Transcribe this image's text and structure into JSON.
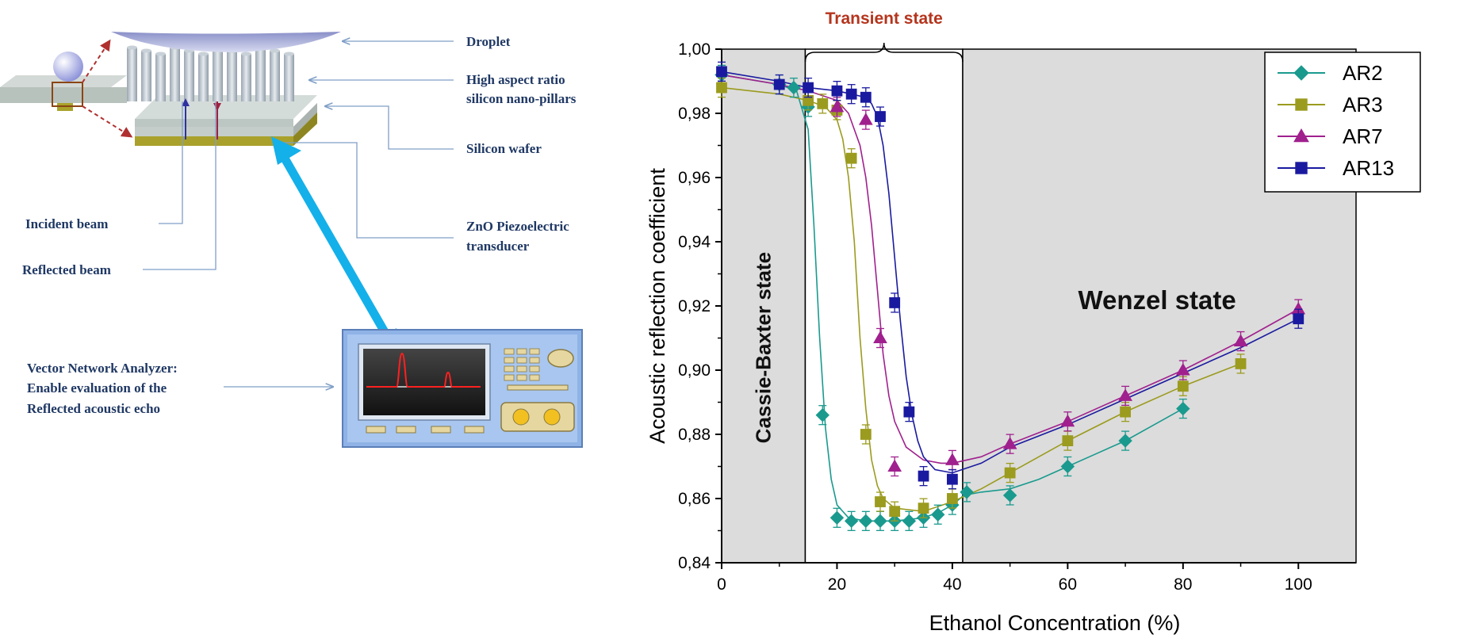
{
  "diagram": {
    "labels": {
      "droplet": "Droplet",
      "pillars_line1": "High aspect ratio",
      "pillars_line2": "silicon nano-pillars",
      "wafer": "Silicon wafer",
      "zno_line1": "ZnO Piezoelectric",
      "zno_line2": "transducer",
      "incident": "Incident beam",
      "reflected": "Reflected beam",
      "vna_line1": "Vector Network Analyzer:",
      "vna_line2": "Enable evaluation of the",
      "vna_line3": "Reflected acoustic echo"
    }
  },
  "chart_data": {
    "type": "scatter",
    "xlabel": "Ethanol Concentration (%)",
    "ylabel": "Acoustic reflection coefficient",
    "xlim": [
      0,
      110
    ],
    "ylim": [
      0.84,
      1.0
    ],
    "xticks": [
      0,
      20,
      40,
      60,
      80,
      100
    ],
    "xtick_labels": [
      "0",
      "20",
      "40",
      "60",
      "80",
      "100"
    ],
    "yticks": [
      0.84,
      0.86,
      0.88,
      0.9,
      0.92,
      0.94,
      0.96,
      0.98,
      1.0
    ],
    "ytick_labels": [
      "0,84",
      "0,86",
      "0,88",
      "0,90",
      "0,92",
      "0,94",
      "0,96",
      "0,98",
      "1,00"
    ],
    "legend_position": "top-right",
    "regions": [
      {
        "name": "Cassie-Baxter state",
        "x_range": [
          0,
          14.5
        ],
        "shaded": true
      },
      {
        "name": "Transient state",
        "x_range": [
          14.5,
          41.8
        ],
        "shaded": false
      },
      {
        "name": "Wenzel state",
        "x_range": [
          41.8,
          110
        ],
        "shaded": true
      }
    ],
    "region_labels": {
      "cassie": "Cassie-Baxter state",
      "transient": "Transient state",
      "wenzel": "Wenzel state"
    },
    "series": [
      {
        "name": "AR2",
        "color": "#1a9a8e",
        "marker": "diamond",
        "x": [
          0,
          10,
          12.5,
          15,
          17.5,
          20,
          22.5,
          25,
          27.5,
          30,
          32.5,
          35,
          37.5,
          40,
          42.5,
          50,
          60,
          70,
          80
        ],
        "y": [
          0.992,
          0.989,
          0.988,
          0.982,
          0.886,
          0.854,
          0.853,
          0.853,
          0.853,
          0.853,
          0.853,
          0.854,
          0.855,
          0.858,
          0.862,
          0.861,
          0.87,
          0.878,
          0.888
        ]
      },
      {
        "name": "AR3",
        "color": "#9b9b1f",
        "marker": "square",
        "x": [
          0,
          15,
          17.5,
          20,
          22.5,
          25,
          27.5,
          30,
          35,
          40,
          50,
          60,
          70,
          80,
          90
        ],
        "y": [
          0.988,
          0.984,
          0.983,
          0.981,
          0.966,
          0.88,
          0.859,
          0.856,
          0.857,
          0.86,
          0.868,
          0.878,
          0.887,
          0.895,
          0.902
        ]
      },
      {
        "name": "AR7",
        "color": "#a0208e",
        "marker": "triangle",
        "x": [
          20,
          25,
          27.5,
          30,
          40,
          50,
          60,
          70,
          80,
          90,
          100
        ],
        "y": [
          0.982,
          0.978,
          0.91,
          0.87,
          0.872,
          0.877,
          0.884,
          0.892,
          0.9,
          0.909,
          0.919
        ]
      },
      {
        "name": "AR13",
        "color": "#1a1aa0",
        "marker": "square",
        "x": [
          0,
          10,
          15,
          20,
          22.5,
          25,
          27.5,
          30,
          32.5,
          35,
          40,
          100
        ],
        "y": [
          0.993,
          0.989,
          0.988,
          0.987,
          0.986,
          0.985,
          0.979,
          0.921,
          0.887,
          0.867,
          0.866,
          0.916
        ]
      }
    ],
    "fit_curves": [
      {
        "name": "AR2",
        "x": [
          0,
          10,
          13,
          15,
          16,
          17,
          18,
          19,
          20,
          22,
          25,
          30,
          35,
          38,
          40,
          42,
          45,
          50,
          55,
          60,
          65,
          70,
          75,
          80
        ],
        "y": [
          0.992,
          0.989,
          0.987,
          0.975,
          0.945,
          0.91,
          0.882,
          0.866,
          0.858,
          0.854,
          0.853,
          0.853,
          0.854,
          0.856,
          0.858,
          0.861,
          0.862,
          0.863,
          0.866,
          0.87,
          0.874,
          0.878,
          0.883,
          0.888
        ]
      },
      {
        "name": "AR3",
        "x": [
          0,
          10,
          15,
          18,
          20,
          21,
          22,
          23,
          24,
          25,
          26,
          27,
          28,
          30,
          35,
          40,
          45,
          50,
          55,
          60,
          70,
          80,
          90
        ],
        "y": [
          0.988,
          0.986,
          0.984,
          0.982,
          0.978,
          0.972,
          0.96,
          0.94,
          0.91,
          0.888,
          0.872,
          0.864,
          0.86,
          0.857,
          0.856,
          0.859,
          0.863,
          0.868,
          0.873,
          0.878,
          0.887,
          0.895,
          0.902
        ]
      },
      {
        "name": "AR7",
        "x": [
          0,
          10,
          15,
          20,
          22,
          24,
          25,
          26,
          27,
          28,
          29,
          30,
          32,
          35,
          38,
          40,
          45,
          50,
          60,
          70,
          80,
          90,
          100
        ],
        "y": [
          0.992,
          0.989,
          0.987,
          0.984,
          0.98,
          0.97,
          0.96,
          0.945,
          0.925,
          0.905,
          0.892,
          0.884,
          0.876,
          0.872,
          0.871,
          0.871,
          0.873,
          0.877,
          0.884,
          0.892,
          0.9,
          0.909,
          0.919
        ]
      },
      {
        "name": "AR13",
        "x": [
          0,
          10,
          15,
          20,
          25,
          26,
          27,
          28,
          29,
          30,
          31,
          32,
          33,
          34,
          35,
          37,
          40,
          45,
          50,
          60,
          70,
          80,
          90,
          100
        ],
        "y": [
          0.993,
          0.99,
          0.988,
          0.987,
          0.985,
          0.983,
          0.979,
          0.97,
          0.955,
          0.935,
          0.915,
          0.898,
          0.886,
          0.878,
          0.873,
          0.869,
          0.868,
          0.871,
          0.876,
          0.883,
          0.891,
          0.899,
          0.907,
          0.916
        ]
      }
    ]
  }
}
